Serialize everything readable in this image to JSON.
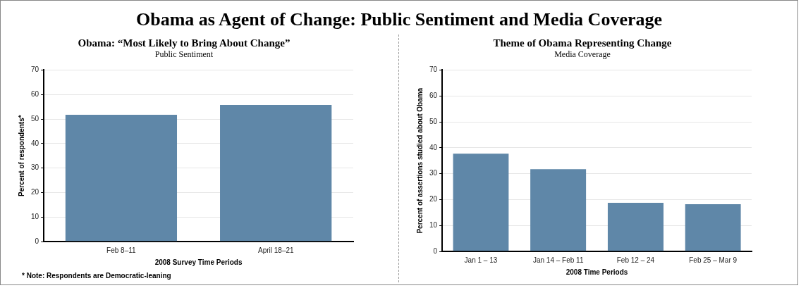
{
  "chart_data": [
    {
      "type": "other",
      "title": "Obama as Agent of Change: Public Sentiment and Media Coverage"
    },
    {
      "type": "bar",
      "title": "Obama: “Most Likely to Bring About Change”",
      "subtitle": "Public Sentiment",
      "xlabel": "2008 Survey Time Periods",
      "ylabel": "Percent of respondents*",
      "categories": [
        "Feb 8–11",
        "April 18–21"
      ],
      "values": [
        52,
        56
      ],
      "color": "#5f87a8",
      "ylim": [
        0,
        70
      ],
      "yticks": [
        0,
        10,
        20,
        30,
        40,
        50,
        60,
        70
      ],
      "grid": "y",
      "legend": false,
      "annotations": [
        "* Note: Respondents are Democratic-leaning"
      ]
    },
    {
      "type": "bar",
      "title": "Theme of Obama Representing Change",
      "subtitle": "Media Coverage",
      "xlabel": "2008 Time Periods",
      "ylabel": "Percent of assertions studied about Obama",
      "categories": [
        "Jan 1 – 13",
        "Jan 14 – Feb 11",
        "Feb 12 – 24",
        "Feb 25 – Mar 9"
      ],
      "values": [
        38,
        32,
        19,
        18.5
      ],
      "color": "#5f87a8",
      "ylim": [
        0,
        70
      ],
      "yticks": [
        0,
        10,
        20,
        30,
        40,
        50,
        60,
        70
      ],
      "grid": "y",
      "legend": false
    }
  ]
}
